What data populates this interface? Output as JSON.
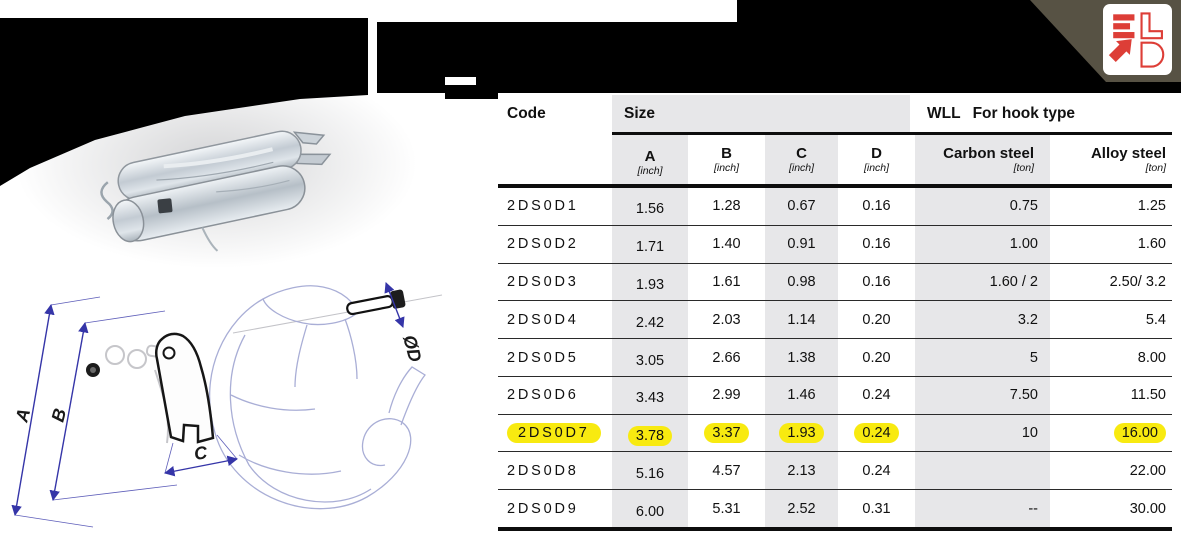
{
  "colors": {
    "highlight": "#f8ea10",
    "column_band": "#e7e7e9",
    "logo_red": "#dd3e37",
    "corner_olive": "#575244",
    "dimension_blue": "#3535a8",
    "hook_line": "#a9aed6"
  },
  "brand": {
    "logo_text": "ELD"
  },
  "diagram": {
    "dim_labels": [
      "A",
      "B",
      "C",
      "ØD"
    ]
  },
  "table": {
    "headers": {
      "code": "Code",
      "size": "Size",
      "wll": "WLL",
      "wll_qualifier": "For hook type"
    },
    "subheaders": [
      {
        "label": "A",
        "unit": "[inch]"
      },
      {
        "label": "B",
        "unit": "[inch]"
      },
      {
        "label": "C",
        "unit": "[inch]"
      },
      {
        "label": "D",
        "unit": "[inch]"
      },
      {
        "label": "Carbon steel",
        "unit": "[ton]"
      },
      {
        "label": "Alloy steel",
        "unit": "[ton]"
      }
    ],
    "rows": [
      {
        "code": "2DS0D1",
        "a": "1.56",
        "b": "1.28",
        "c": "0.67",
        "d": "0.16",
        "carbon": "0.75",
        "alloy": "1.25",
        "highlight": false
      },
      {
        "code": "2DS0D2",
        "a": "1.71",
        "b": "1.40",
        "c": "0.91",
        "d": "0.16",
        "carbon": "1.00",
        "alloy": "1.60",
        "highlight": false
      },
      {
        "code": "2DS0D3",
        "a": "1.93",
        "b": "1.61",
        "c": "0.98",
        "d": "0.16",
        "carbon": "1.60 / 2",
        "alloy": "2.50/ 3.2",
        "highlight": false
      },
      {
        "code": "2DS0D4",
        "a": "2.42",
        "b": "2.03",
        "c": "1.14",
        "d": "0.20",
        "carbon": "3.2",
        "alloy": "5.4",
        "highlight": false
      },
      {
        "code": "2DS0D5",
        "a": "3.05",
        "b": "2.66",
        "c": "1.38",
        "d": "0.20",
        "carbon": "5",
        "alloy": "8.00",
        "highlight": false
      },
      {
        "code": "2DS0D6",
        "a": "3.43",
        "b": "2.99",
        "c": "1.46",
        "d": "0.24",
        "carbon": "7.50",
        "alloy": "11.50",
        "highlight": false
      },
      {
        "code": "2DS0D7",
        "a": "3.78",
        "b": "3.37",
        "c": "1.93",
        "d": "0.24",
        "carbon": "10",
        "alloy": "16.00",
        "highlight": true
      },
      {
        "code": "2DS0D8",
        "a": "5.16",
        "b": "4.57",
        "c": "2.13",
        "d": "0.24",
        "carbon": "",
        "alloy": "22.00",
        "highlight": false
      },
      {
        "code": "2DS0D9",
        "a": "6.00",
        "b": "5.31",
        "c": "2.52",
        "d": "0.31",
        "carbon": "--",
        "alloy": "30.00",
        "highlight": false
      }
    ]
  }
}
